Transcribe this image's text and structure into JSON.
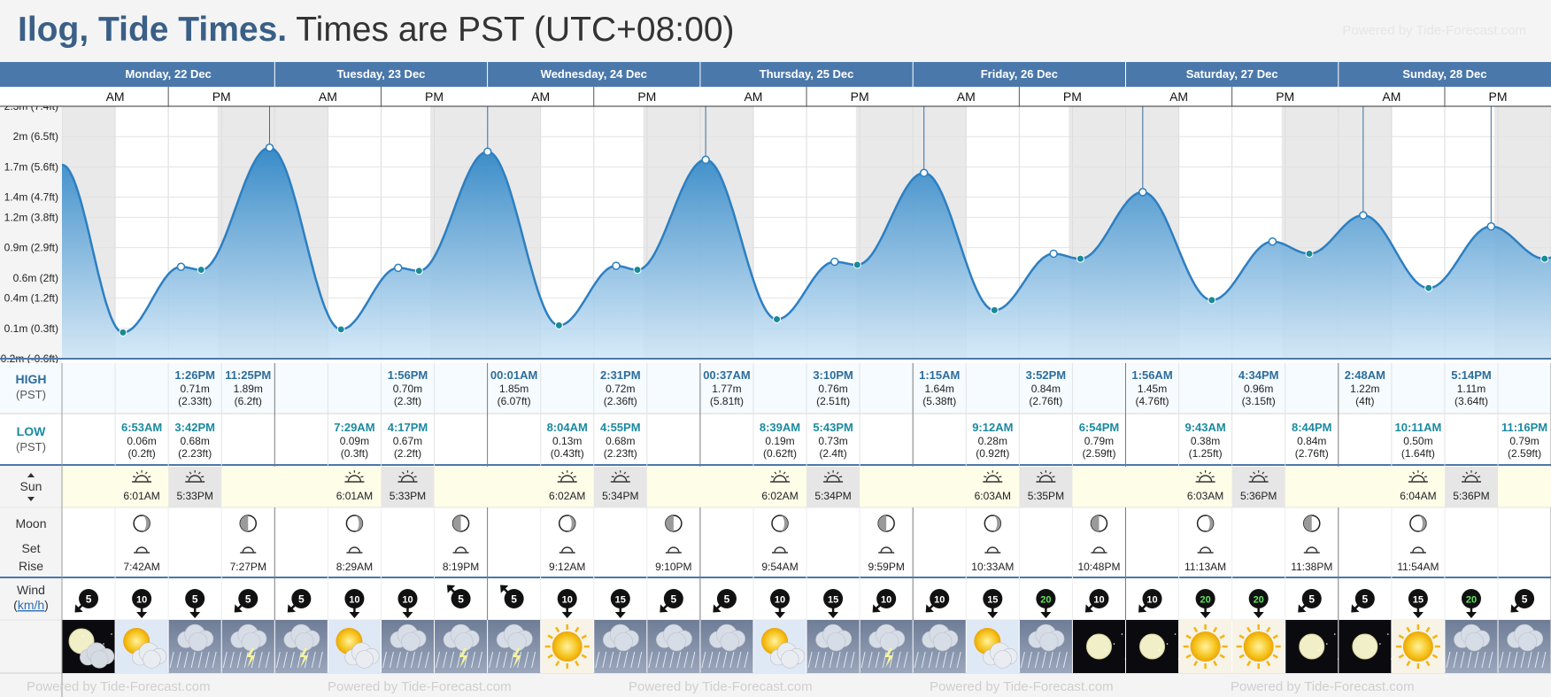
{
  "title": {
    "place": "Ilog, Tide Times.",
    "tz": "Times are PST (UTC+08:00)"
  },
  "powered_by": "Powered by Tide-Forecast.com",
  "footer_text": "Powered by Tide-Forecast.com",
  "ampm": [
    "AM",
    "PM"
  ],
  "row_labels": {
    "high": "HIGH",
    "high_tz": "(PST)",
    "low": "LOW",
    "low_tz": "(PST)",
    "sun": "Sun",
    "moon": "Moon",
    "set": "Set",
    "rise": "Rise",
    "wind": "Wind",
    "wind_unit": "km/h"
  },
  "colors": {
    "header_bar": "#4b78ab",
    "tide_fill": "#3b8fcb",
    "tide_line": "#2d7fc1",
    "high_text": "#2d6d9b",
    "low_text": "#1b8aa0",
    "sun_band": "#fefde8"
  },
  "days": [
    {
      "label": "Monday, 22 Dec"
    },
    {
      "label": "Tuesday, 23 Dec"
    },
    {
      "label": "Wednesday, 24 Dec"
    },
    {
      "label": "Thursday, 25 Dec"
    },
    {
      "label": "Friday, 26 Dec"
    },
    {
      "label": "Saturday, 27 Dec"
    },
    {
      "label": "Sunday, 28 Dec"
    }
  ],
  "chart_data": {
    "type": "area",
    "title": "Ilog, Tide Times.",
    "xlabel": "",
    "ylabel": "",
    "x_range_hours": [
      0,
      168
    ],
    "ylim": [
      -0.2,
      2.3
    ],
    "y_ticks": [
      {
        "v": -0.2,
        "label": "-0.2m (-0.6ft)"
      },
      {
        "v": 0.1,
        "label": "0.1m (0.3ft)"
      },
      {
        "v": 0.4,
        "label": "0.4m (1.2ft)"
      },
      {
        "v": 0.6,
        "label": "0.6m (2ft)"
      },
      {
        "v": 0.9,
        "label": "0.9m (2.9ft)"
      },
      {
        "v": 1.2,
        "label": "1.2m (3.8ft)"
      },
      {
        "v": 1.4,
        "label": "1.4m (4.7ft)"
      },
      {
        "v": 1.7,
        "label": "1.7m (5.6ft)"
      },
      {
        "v": 2.0,
        "label": "2m (6.5ft)"
      },
      {
        "v": 2.3,
        "label": "2.3m (7.4ft)"
      }
    ],
    "grid": true,
    "tides": [
      {
        "h": 0.0,
        "v": 1.72,
        "t": ""
      },
      {
        "h": 6.88,
        "v": 0.06,
        "t": "low"
      },
      {
        "h": 13.43,
        "v": 0.71,
        "t": "high"
      },
      {
        "h": 15.7,
        "v": 0.68,
        "t": "low"
      },
      {
        "h": 23.42,
        "v": 1.89,
        "t": "high"
      },
      {
        "h": 31.48,
        "v": 0.09,
        "t": "low"
      },
      {
        "h": 37.93,
        "v": 0.7,
        "t": "high"
      },
      {
        "h": 40.28,
        "v": 0.67,
        "t": "low"
      },
      {
        "h": 48.02,
        "v": 1.85,
        "t": "high"
      },
      {
        "h": 56.07,
        "v": 0.13,
        "t": "low"
      },
      {
        "h": 62.52,
        "v": 0.72,
        "t": "high"
      },
      {
        "h": 64.92,
        "v": 0.68,
        "t": "low"
      },
      {
        "h": 72.62,
        "v": 1.77,
        "t": "high"
      },
      {
        "h": 80.65,
        "v": 0.19,
        "t": "low"
      },
      {
        "h": 87.17,
        "v": 0.76,
        "t": "high"
      },
      {
        "h": 89.72,
        "v": 0.73,
        "t": "low"
      },
      {
        "h": 97.25,
        "v": 1.64,
        "t": "high"
      },
      {
        "h": 105.2,
        "v": 0.28,
        "t": "low"
      },
      {
        "h": 111.87,
        "v": 0.84,
        "t": "high"
      },
      {
        "h": 114.9,
        "v": 0.79,
        "t": "low"
      },
      {
        "h": 121.93,
        "v": 1.45,
        "t": "high"
      },
      {
        "h": 129.72,
        "v": 0.38,
        "t": "low"
      },
      {
        "h": 136.57,
        "v": 0.96,
        "t": "high"
      },
      {
        "h": 140.73,
        "v": 0.84,
        "t": "low"
      },
      {
        "h": 146.8,
        "v": 1.22,
        "t": "high"
      },
      {
        "h": 154.18,
        "v": 0.5,
        "t": "low"
      },
      {
        "h": 161.23,
        "v": 1.11,
        "t": "high"
      },
      {
        "h": 167.27,
        "v": 0.79,
        "t": "low"
      },
      {
        "h": 168.0,
        "v": 0.8,
        "t": ""
      }
    ],
    "night": [
      [
        0,
        6.02
      ],
      [
        17.55,
        30.02
      ],
      [
        41.55,
        54.03
      ],
      [
        65.57,
        78.03
      ],
      [
        89.57,
        102.05
      ],
      [
        113.58,
        126.05
      ],
      [
        137.6,
        150.07
      ],
      [
        161.6,
        168
      ]
    ]
  },
  "high_tides": [
    {
      "h": 13.43,
      "time": "1:26PM",
      "m": "0.71m",
      "ft": "(2.33ft)"
    },
    {
      "h": 23.42,
      "time": "11:25PM",
      "m": "1.89m",
      "ft": "(6.2ft)"
    },
    {
      "h": 37.93,
      "time": "1:56PM",
      "m": "0.70m",
      "ft": "(2.3ft)"
    },
    {
      "h": 48.02,
      "time": "00:01AM",
      "m": "1.85m",
      "ft": "(6.07ft)"
    },
    {
      "h": 62.52,
      "time": "2:31PM",
      "m": "0.72m",
      "ft": "(2.36ft)"
    },
    {
      "h": 72.62,
      "time": "00:37AM",
      "m": "1.77m",
      "ft": "(5.81ft)"
    },
    {
      "h": 87.17,
      "time": "3:10PM",
      "m": "0.76m",
      "ft": "(2.51ft)"
    },
    {
      "h": 97.25,
      "time": "1:15AM",
      "m": "1.64m",
      "ft": "(5.38ft)"
    },
    {
      "h": 111.87,
      "time": "3:52PM",
      "m": "0.84m",
      "ft": "(2.76ft)"
    },
    {
      "h": 121.93,
      "time": "1:56AM",
      "m": "1.45m",
      "ft": "(4.76ft)"
    },
    {
      "h": 136.57,
      "time": "4:34PM",
      "m": "0.96m",
      "ft": "(3.15ft)"
    },
    {
      "h": 146.8,
      "time": "2:48AM",
      "m": "1.22m",
      "ft": "(4ft)"
    },
    {
      "h": 161.23,
      "time": "5:14PM",
      "m": "1.11m",
      "ft": "(3.64ft)"
    }
  ],
  "low_tides": [
    {
      "h": 6.88,
      "time": "6:53AM",
      "m": "0.06m",
      "ft": "(0.2ft)"
    },
    {
      "h": 15.7,
      "time": "3:42PM",
      "m": "0.68m",
      "ft": "(2.23ft)"
    },
    {
      "h": 31.48,
      "time": "7:29AM",
      "m": "0.09m",
      "ft": "(0.3ft)"
    },
    {
      "h": 40.28,
      "time": "4:17PM",
      "m": "0.67m",
      "ft": "(2.2ft)"
    },
    {
      "h": 56.07,
      "time": "8:04AM",
      "m": "0.13m",
      "ft": "(0.43ft)"
    },
    {
      "h": 64.92,
      "time": "4:55PM",
      "m": "0.68m",
      "ft": "(2.23ft)"
    },
    {
      "h": 80.65,
      "time": "8:39AM",
      "m": "0.19m",
      "ft": "(0.62ft)"
    },
    {
      "h": 89.72,
      "time": "5:43PM",
      "m": "0.73m",
      "ft": "(2.4ft)"
    },
    {
      "h": 105.2,
      "time": "9:12AM",
      "m": "0.28m",
      "ft": "(0.92ft)"
    },
    {
      "h": 114.9,
      "time": "6:54PM",
      "m": "0.79m",
      "ft": "(2.59ft)"
    },
    {
      "h": 129.72,
      "time": "9:43AM",
      "m": "0.38m",
      "ft": "(1.25ft)"
    },
    {
      "h": 140.73,
      "time": "8:44PM",
      "m": "0.84m",
      "ft": "(2.76ft)"
    },
    {
      "h": 154.18,
      "time": "10:11AM",
      "m": "0.50m",
      "ft": "(1.64ft)"
    },
    {
      "h": 167.27,
      "time": "11:16PM",
      "m": "0.79m",
      "ft": "(2.59ft)"
    }
  ],
  "sun": [
    {
      "rise": "6:01AM",
      "set": "5:33PM"
    },
    {
      "rise": "6:01AM",
      "set": "5:33PM"
    },
    {
      "rise": "6:02AM",
      "set": "5:34PM"
    },
    {
      "rise": "6:02AM",
      "set": "5:34PM"
    },
    {
      "rise": "6:03AM",
      "set": "5:35PM"
    },
    {
      "rise": "6:03AM",
      "set": "5:36PM"
    },
    {
      "rise": "6:04AM",
      "set": "5:36PM"
    }
  ],
  "moon_events": [
    {
      "slot": 1,
      "type": "rise",
      "time": "7:42AM",
      "phase": "waning-crescent"
    },
    {
      "slot": 3,
      "type": "set",
      "time": "7:27PM",
      "phase": "waxing"
    },
    {
      "slot": 5,
      "type": "rise",
      "time": "8:29AM",
      "phase": "waning-crescent"
    },
    {
      "slot": 7,
      "type": "set",
      "time": "8:19PM",
      "phase": "waxing"
    },
    {
      "slot": 9,
      "type": "rise",
      "time": "9:12AM",
      "phase": "waning-crescent"
    },
    {
      "slot": 11,
      "type": "set",
      "time": "9:10PM",
      "phase": "waxing"
    },
    {
      "slot": 13,
      "type": "rise",
      "time": "9:54AM",
      "phase": "waning-crescent"
    },
    {
      "slot": 15,
      "type": "set",
      "time": "9:59PM",
      "phase": "waxing"
    },
    {
      "slot": 17,
      "type": "rise",
      "time": "10:33AM",
      "phase": "waning-crescent"
    },
    {
      "slot": 19,
      "type": "set",
      "time": "10:48PM",
      "phase": "waxing"
    },
    {
      "slot": 21,
      "type": "rise",
      "time": "11:13AM",
      "phase": "waning-crescent"
    },
    {
      "slot": 23,
      "type": "set",
      "time": "11:38PM",
      "phase": "waxing"
    },
    {
      "slot": 25,
      "type": "rise",
      "time": "11:54AM",
      "phase": "waning-crescent"
    }
  ],
  "wind": [
    {
      "s": 5,
      "dir": 225
    },
    {
      "s": 10,
      "dir": 180
    },
    {
      "s": 5,
      "dir": 180
    },
    {
      "s": 5,
      "dir": 225
    },
    {
      "s": 5,
      "dir": 225
    },
    {
      "s": 10,
      "dir": 180
    },
    {
      "s": 10,
      "dir": 180
    },
    {
      "s": 5,
      "dir": 315
    },
    {
      "s": 5,
      "dir": 315
    },
    {
      "s": 10,
      "dir": 180
    },
    {
      "s": 15,
      "dir": 180
    },
    {
      "s": 5,
      "dir": 225
    },
    {
      "s": 5,
      "dir": 225
    },
    {
      "s": 10,
      "dir": 180
    },
    {
      "s": 15,
      "dir": 180
    },
    {
      "s": 10,
      "dir": 225
    },
    {
      "s": 10,
      "dir": 225
    },
    {
      "s": 15,
      "dir": 180
    },
    {
      "s": 20,
      "dir": 180
    },
    {
      "s": 10,
      "dir": 225
    },
    {
      "s": 10,
      "dir": 225
    },
    {
      "s": 20,
      "dir": 180
    },
    {
      "s": 20,
      "dir": 180
    },
    {
      "s": 5,
      "dir": 225
    },
    {
      "s": 5,
      "dir": 225
    },
    {
      "s": 15,
      "dir": 180
    },
    {
      "s": 20,
      "dir": 180
    },
    {
      "s": 5,
      "dir": 225
    }
  ],
  "weather": [
    "moon-cloud",
    "sun-cloud",
    "rain",
    "storm",
    "storm",
    "sun-cloud",
    "rain",
    "storm",
    "storm",
    "sun",
    "rain",
    "rain",
    "rain",
    "sun-cloud",
    "rain",
    "storm",
    "rain",
    "sun-cloud",
    "rain",
    "moon",
    "moon",
    "sun",
    "sun",
    "moon",
    "moon",
    "sun",
    "rain",
    "rain"
  ]
}
